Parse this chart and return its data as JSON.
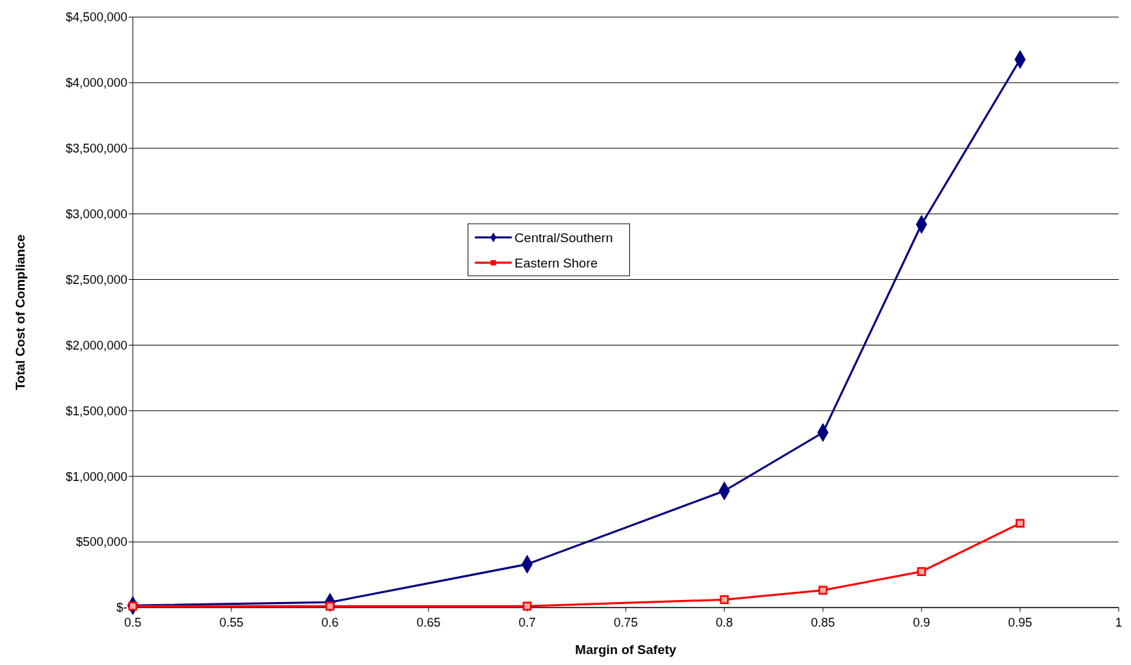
{
  "chart_data": {
    "type": "line",
    "xlabel": "Margin of Safety",
    "ylabel": "Total Cost of Compliance",
    "x": [
      0.5,
      0.6,
      0.7,
      0.8,
      0.85,
      0.9,
      0.95
    ],
    "series": [
      {
        "name": "Central/Southern",
        "color": "#000080",
        "marker": "diamond",
        "values": [
          15000,
          40000,
          330000,
          889000,
          1334000,
          2920000,
          4177000
        ]
      },
      {
        "name": "Eastern Shore",
        "color": "#ff0000",
        "marker": "square",
        "values": [
          10000,
          10000,
          10000,
          60000,
          132000,
          274000,
          642000
        ]
      }
    ],
    "xlim": [
      0.5,
      1
    ],
    "xticks": [
      0.5,
      0.55,
      0.6,
      0.65,
      0.7,
      0.75,
      0.8,
      0.85,
      0.9,
      0.95,
      1
    ],
    "ylim": [
      0,
      4500000
    ],
    "yticks": [
      {
        "value": 0,
        "label": "$-"
      },
      {
        "value": 500000,
        "label": "$500,000"
      },
      {
        "value": 1000000,
        "label": "$1,000,000"
      },
      {
        "value": 1500000,
        "label": "$1,500,000"
      },
      {
        "value": 2000000,
        "label": "$2,000,000"
      },
      {
        "value": 2500000,
        "label": "$2,500,000"
      },
      {
        "value": 3000000,
        "label": "$3,000,000"
      },
      {
        "value": 3500000,
        "label": "$3,500,000"
      },
      {
        "value": 4000000,
        "label": "$4,000,000"
      },
      {
        "value": 4500000,
        "label": "$4,500,000"
      }
    ],
    "grid": "y",
    "legend": "center",
    "line_style": "solid"
  }
}
